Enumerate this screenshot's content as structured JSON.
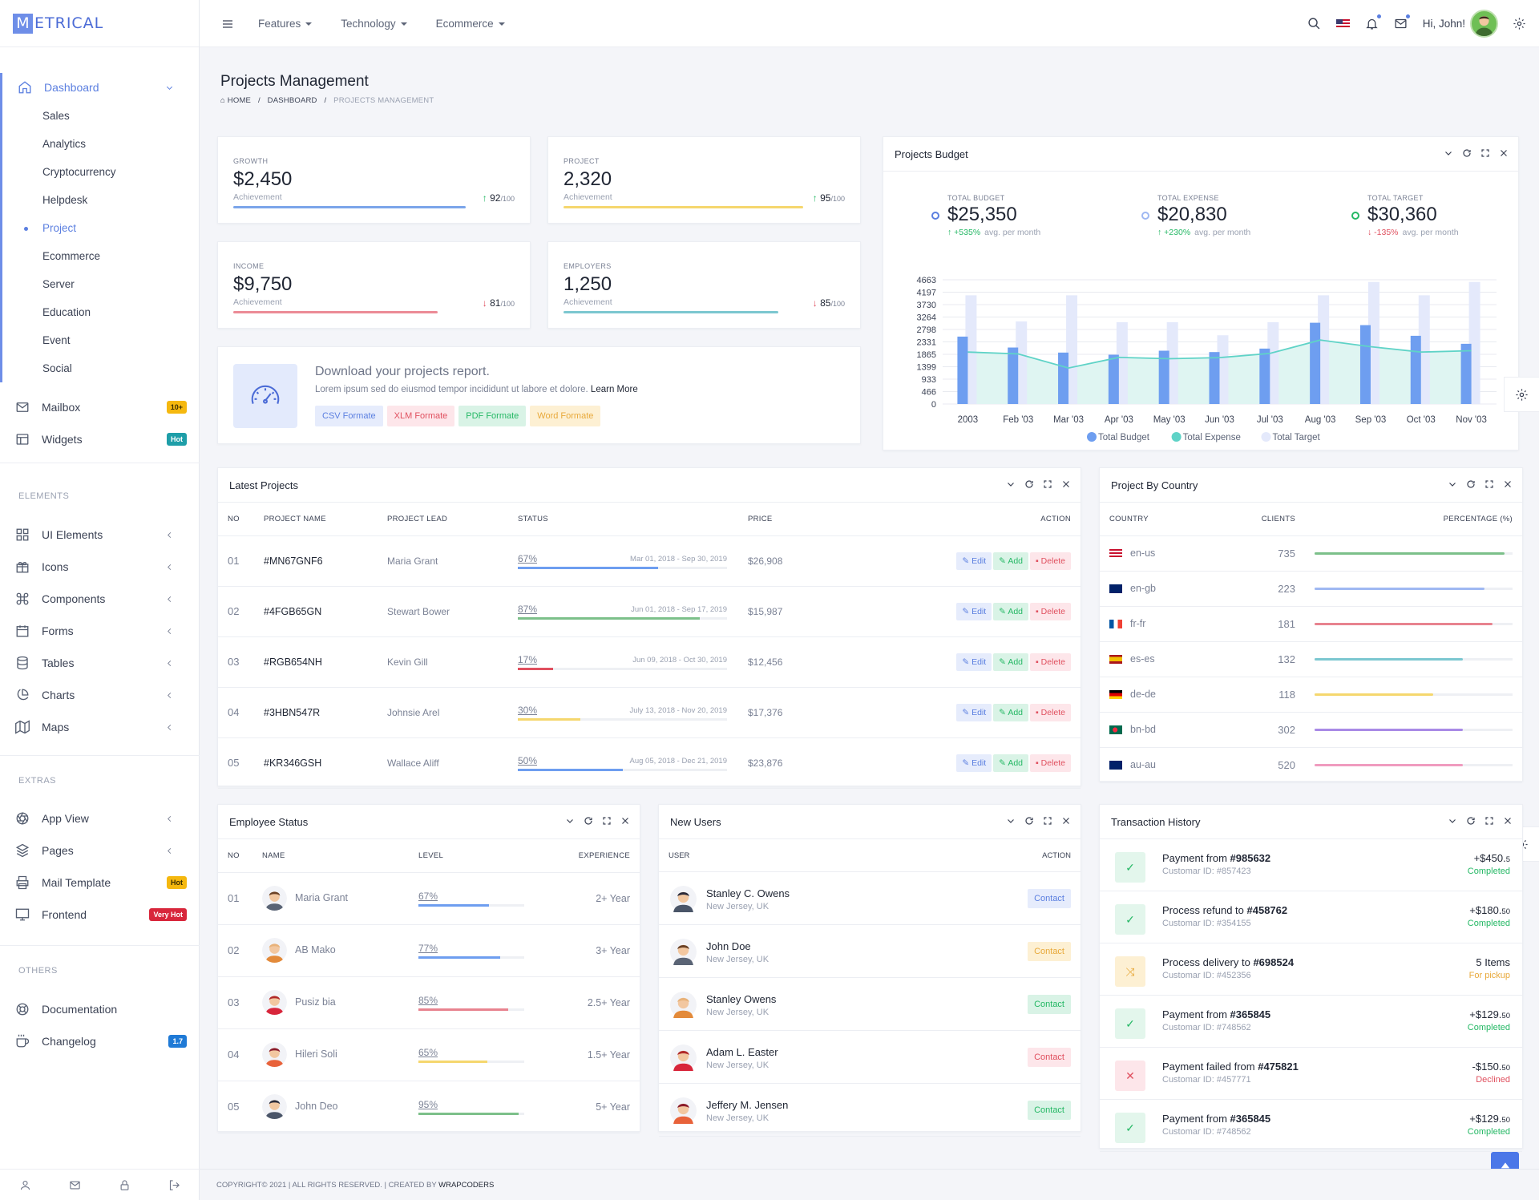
{
  "brand": {
    "letter": "M",
    "rest": "ETRICAL"
  },
  "header": {
    "nav": [
      "Features",
      "Technology",
      "Ecommerce"
    ],
    "greeting": "Hi, John!"
  },
  "sidebar": {
    "dashboard": "Dashboard",
    "sub": [
      "Sales",
      "Analytics",
      "Cryptocurrency",
      "Helpdesk",
      "Project",
      "Ecommerce",
      "Server",
      "Education",
      "Event",
      "Social"
    ],
    "mailbox": "Mailbox",
    "mailbox_badge": "10+",
    "widgets": "Widgets",
    "widgets_badge": "Hot",
    "elements_title": "ELEMENTS",
    "elements": [
      "UI Elements",
      "Icons",
      "Components",
      "Forms",
      "Tables",
      "Charts",
      "Maps"
    ],
    "extras_title": "EXTRAS",
    "extras": [
      "App View",
      "Pages",
      "Mail Template",
      "Frontend"
    ],
    "mail_badge": "Hot",
    "frontend_badge": "Very Hot",
    "others_title": "OTHERS",
    "others": [
      "Documentation",
      "Changelog"
    ],
    "changelog_badge": "1.7"
  },
  "page": {
    "title": "Projects Management",
    "crumb_home": "HOME",
    "crumb_dash": "DASHBOARD",
    "crumb_cur": "PROJECTS MANAGEMENT"
  },
  "stats": [
    {
      "label": "GROWTH",
      "value": "$2,450",
      "ach": "Achievement",
      "score": "92",
      "of": "/100",
      "dir": "up",
      "color": "#7ba5ea",
      "fill": 0.92
    },
    {
      "label": "PROJECT",
      "value": "2,320",
      "ach": "Achievement",
      "score": "95",
      "of": "/100",
      "dir": "up",
      "color": "#f5d76e",
      "fill": 0.95
    },
    {
      "label": "INCOME",
      "value": "$9,750",
      "ach": "Achievement",
      "score": "81",
      "of": "/100",
      "dir": "down",
      "color": "#ec8b96",
      "fill": 0.81
    },
    {
      "label": "EMPLOYERS",
      "value": "1,250",
      "ach": "Achievement",
      "score": "85",
      "of": "/100",
      "dir": "down",
      "color": "#7cc7d0",
      "fill": 0.85
    }
  ],
  "download": {
    "title": "Download your projects report.",
    "text": "Lorem ipsum sed do eiusmod tempor incididunt ut labore et dolore.",
    "link": "Learn More",
    "buttons": [
      "CSV Formate",
      "XLM Formate",
      "PDF Formate",
      "Word Formate"
    ]
  },
  "budget": {
    "title": "Projects Budget",
    "stats": [
      {
        "label": "TOTAL BUDGET",
        "value": "$25,350",
        "change": "+535%",
        "note": "avg. per month",
        "dir": "up",
        "ring": "#5b7fe0"
      },
      {
        "label": "TOTAL EXPENSE",
        "value": "$20,830",
        "change": "+230%",
        "note": "avg. per month",
        "dir": "up",
        "ring": "#9fb8f2"
      },
      {
        "label": "TOTAL TARGET",
        "value": "$30,360",
        "change": "-135%",
        "note": "avg. per month",
        "dir": "down",
        "ring": "#25b865"
      }
    ]
  },
  "chart_data": {
    "type": "bar",
    "categories": [
      "2003",
      "Feb '03",
      "Mar '03",
      "Apr '03",
      "May '03",
      "Jun '03",
      "Jul '03",
      "Aug '03",
      "Sep '03",
      "Oct '03",
      "Nov '03"
    ],
    "yticks": [
      "4663",
      "4197",
      "3730",
      "3264",
      "2798",
      "2331",
      "1865",
      "1399",
      "933",
      "466",
      "0"
    ],
    "ylim": [
      0,
      4663
    ],
    "series": [
      {
        "name": "Total Budget",
        "type": "bar",
        "color": "#6e9ef0",
        "values": [
          2530,
          2120,
          1930,
          1850,
          2000,
          1950,
          2080,
          3050,
          2960,
          2560,
          2260
        ]
      },
      {
        "name": "Total Expense",
        "type": "area",
        "color": "#5fd3c7",
        "values": [
          1950,
          1880,
          1350,
          1750,
          1700,
          1740,
          1900,
          2400,
          2150,
          1950,
          2000
        ]
      },
      {
        "name": "Total Target",
        "type": "bar",
        "color": "#e4e9fb",
        "values": [
          4080,
          3100,
          4080,
          3070,
          3070,
          2580,
          3070,
          4080,
          4580,
          4080,
          4580
        ]
      }
    ]
  },
  "latest": {
    "title": "Latest Projects",
    "headers": [
      "NO",
      "PROJECT NAME",
      "PROJECT LEAD",
      "STATUS",
      "PRICE",
      "ACTION"
    ],
    "actions": [
      "Edit",
      "Add",
      "Delete"
    ],
    "rows": [
      {
        "no": "01",
        "name": "#MN67GNF6",
        "lead": "Maria Grant",
        "pct": "67%",
        "date": "Mar 01, 2018 - Sep 30, 2019",
        "price": "$26,908",
        "fill": 0.67,
        "color": "#6e9ef0"
      },
      {
        "no": "02",
        "name": "#4FGB65GN",
        "lead": "Stewart Bower",
        "pct": "87%",
        "date": "Jun 01, 2018 - Sep 17, 2019",
        "price": "$15,987",
        "fill": 0.87,
        "color": "#7cc08a"
      },
      {
        "no": "03",
        "name": "#RGB654NH",
        "lead": "Kevin Gill",
        "pct": "17%",
        "date": "Jun 09, 2018 - Oct 30, 2019",
        "price": "$12,456",
        "fill": 0.17,
        "color": "#e0505f"
      },
      {
        "no": "04",
        "name": "#3HBN547R",
        "lead": "Johnsie Arel",
        "pct": "30%",
        "date": "July 13, 2018 - Nov 20, 2019",
        "price": "$17,376",
        "fill": 0.3,
        "color": "#f5d76e"
      },
      {
        "no": "05",
        "name": "#KR346GSH",
        "lead": "Wallace Aliff",
        "pct": "50%",
        "date": "Aug 05, 2018 - Dec 21, 2019",
        "price": "$23,876",
        "fill": 0.5,
        "color": "#6e9ef0"
      }
    ]
  },
  "country": {
    "title": "Project By Country",
    "headers": [
      "COUNTRY",
      "CLIENTS",
      "PERCENTAGE (%)"
    ],
    "rows": [
      {
        "code": "en-us",
        "clients": "735",
        "fill": 0.96,
        "color": "#7cc08a"
      },
      {
        "code": "en-gb",
        "clients": "223",
        "fill": 0.86,
        "color": "#9fb8f2"
      },
      {
        "code": "fr-fr",
        "clients": "181",
        "fill": 0.9,
        "color": "#e8838f"
      },
      {
        "code": "es-es",
        "clients": "132",
        "fill": 0.75,
        "color": "#7cc7d0"
      },
      {
        "code": "de-de",
        "clients": "118",
        "fill": 0.6,
        "color": "#f5d76e"
      },
      {
        "code": "bn-bd",
        "clients": "302",
        "fill": 0.75,
        "color": "#a98ae6"
      },
      {
        "code": "au-au",
        "clients": "520",
        "fill": 0.75,
        "color": "#f09cbf"
      }
    ]
  },
  "employees": {
    "title": "Employee Status",
    "headers": [
      "NO",
      "NAME",
      "LEVEL",
      "EXPERIENCE"
    ],
    "rows": [
      {
        "no": "01",
        "name": "Maria Grant",
        "pct": "67%",
        "exp": "2+ Year",
        "fill": 0.67,
        "color": "#6e9ef0"
      },
      {
        "no": "02",
        "name": "AB Mako",
        "pct": "77%",
        "exp": "3+ Year",
        "fill": 0.77,
        "color": "#6e9ef0"
      },
      {
        "no": "03",
        "name": "Pusiz bia",
        "pct": "85%",
        "exp": "2.5+ Year",
        "fill": 0.85,
        "color": "#e8838f"
      },
      {
        "no": "04",
        "name": "Hileri Soli",
        "pct": "65%",
        "exp": "1.5+ Year",
        "fill": 0.65,
        "color": "#f5d76e"
      },
      {
        "no": "05",
        "name": "John Deo",
        "pct": "95%",
        "exp": "5+ Year",
        "fill": 0.95,
        "color": "#7cc08a"
      }
    ]
  },
  "users": {
    "title": "New Users",
    "headers": [
      "USER",
      "ACTION"
    ],
    "rows": [
      {
        "name": "Stanley C. Owens",
        "loc": "New Jersey, UK",
        "btn": "Contact",
        "style": "blue"
      },
      {
        "name": "John Doe",
        "loc": "New Jersey, UK",
        "btn": "Contact",
        "style": "yellow"
      },
      {
        "name": "Stanley Owens",
        "loc": "New Jersey, UK",
        "btn": "Contact",
        "style": "green"
      },
      {
        "name": "Adam L. Easter",
        "loc": "New Jersey, UK",
        "btn": "Contact",
        "style": "red"
      },
      {
        "name": "Jeffery M. Jensen",
        "loc": "New Jersey, UK",
        "btn": "Contact",
        "style": "green"
      }
    ]
  },
  "tx": {
    "title": "Transaction History",
    "rows": [
      {
        "label": "Payment from ",
        "ref": "#985632",
        "sub": "Customar ID: #857423",
        "amt": "+$450.",
        "cents": "5",
        "status": "Completed",
        "kind": "ok"
      },
      {
        "label": "Process refund to ",
        "ref": "#458762",
        "sub": "Customar ID: #354155",
        "amt": "+$180.",
        "cents": "50",
        "status": "Completed",
        "kind": "ok"
      },
      {
        "label": "Process delivery to ",
        "ref": "#698524",
        "sub": "Customar ID: #452356",
        "amt": "5 Items",
        "cents": "",
        "status": "For pickup",
        "kind": "pending"
      },
      {
        "label": "Payment from ",
        "ref": "#365845",
        "sub": "Customar ID: #748562",
        "amt": "+$129.",
        "cents": "50",
        "status": "Completed",
        "kind": "ok"
      },
      {
        "label": "Payment failed from ",
        "ref": "#475821",
        "sub": "Customar ID: #457771",
        "amt": "-$150.",
        "cents": "50",
        "status": "Declined",
        "kind": "fail"
      },
      {
        "label": "Payment from ",
        "ref": "#365845",
        "sub": "Customar ID: #748562",
        "amt": "+$129.",
        "cents": "50",
        "status": "Completed",
        "kind": "ok"
      }
    ]
  },
  "footer": {
    "text": "COPYRIGHT© 2021 | ALL RIGHTS RESERVED. | CREATED BY ",
    "link": "WRAPCODERS"
  }
}
